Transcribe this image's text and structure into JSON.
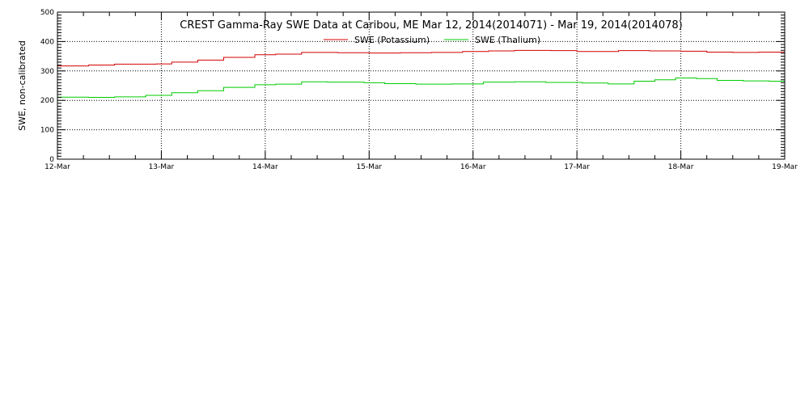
{
  "chart_data": {
    "type": "line",
    "title": "CREST Gamma-Ray SWE Data at Caribou, ME   Mar 12, 2014(2014071) - Mar 19, 2014(2014078)",
    "xlabel": "",
    "ylabel": "SWE, non-calibrated",
    "xlim": [
      0,
      7
    ],
    "ylim": [
      0,
      500
    ],
    "y_ticks": [
      0,
      100,
      200,
      300,
      400,
      500
    ],
    "x_ticks": [
      {
        "value": 0,
        "label": "12-Mar"
      },
      {
        "value": 1,
        "label": "13-Mar"
      },
      {
        "value": 2,
        "label": "14-Mar"
      },
      {
        "value": 3,
        "label": "15-Mar"
      },
      {
        "value": 4,
        "label": "16-Mar"
      },
      {
        "value": 5,
        "label": "17-Mar"
      },
      {
        "value": 6,
        "label": "18-Mar"
      },
      {
        "value": 7,
        "label": "19-Mar"
      }
    ],
    "grid": true,
    "legend_position": "top-center",
    "series": [
      {
        "name": "SWE (Potassium)",
        "color": "#d40000",
        "points": [
          [
            0.0,
            317
          ],
          [
            0.3,
            320
          ],
          [
            0.55,
            323
          ],
          [
            0.95,
            324
          ],
          [
            1.1,
            330
          ],
          [
            1.35,
            337
          ],
          [
            1.6,
            346
          ],
          [
            1.9,
            355
          ],
          [
            2.1,
            357
          ],
          [
            2.35,
            363
          ],
          [
            2.7,
            362
          ],
          [
            3.0,
            361
          ],
          [
            3.3,
            362
          ],
          [
            3.6,
            363
          ],
          [
            3.9,
            366
          ],
          [
            4.15,
            368
          ],
          [
            4.4,
            370
          ],
          [
            4.75,
            369
          ],
          [
            5.0,
            366
          ],
          [
            5.2,
            366
          ],
          [
            5.4,
            369
          ],
          [
            5.7,
            368
          ],
          [
            6.0,
            367
          ],
          [
            6.25,
            364
          ],
          [
            6.5,
            363
          ],
          [
            6.75,
            364
          ],
          [
            7.0,
            366
          ]
        ]
      },
      {
        "name": "SWE (Thalium)",
        "color": "#00cc00",
        "points": [
          [
            0.0,
            211
          ],
          [
            0.3,
            210
          ],
          [
            0.55,
            212
          ],
          [
            0.85,
            217
          ],
          [
            1.1,
            226
          ],
          [
            1.35,
            233
          ],
          [
            1.6,
            244
          ],
          [
            1.9,
            253
          ],
          [
            2.1,
            255
          ],
          [
            2.35,
            263
          ],
          [
            2.6,
            262
          ],
          [
            2.95,
            260
          ],
          [
            3.15,
            257
          ],
          [
            3.45,
            255
          ],
          [
            3.8,
            256
          ],
          [
            4.1,
            262
          ],
          [
            4.4,
            263
          ],
          [
            4.7,
            261
          ],
          [
            5.05,
            259
          ],
          [
            5.3,
            256
          ],
          [
            5.55,
            265
          ],
          [
            5.75,
            270
          ],
          [
            5.95,
            276
          ],
          [
            6.15,
            274
          ],
          [
            6.35,
            268
          ],
          [
            6.6,
            266
          ],
          [
            6.85,
            265
          ],
          [
            7.0,
            262
          ]
        ]
      }
    ]
  }
}
